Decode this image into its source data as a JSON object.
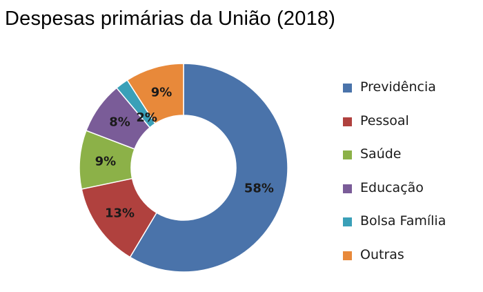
{
  "chart_data": {
    "type": "pie",
    "variant": "donut",
    "title": "Despesas primárias da União (2018)",
    "slices": [
      {
        "label": "Previdência",
        "value": 58,
        "display": "58%",
        "color": "#4a73aa"
      },
      {
        "label": "Pessoal",
        "value": 13,
        "display": "13%",
        "color": "#b0413e"
      },
      {
        "label": "Saúde",
        "value": 9,
        "display": "9%",
        "color": "#8cb148"
      },
      {
        "label": "Educação",
        "value": 8,
        "display": "8%",
        "color": "#7a5c98"
      },
      {
        "label": "Bolsa Família",
        "value": 2,
        "display": "2%",
        "color": "#3aa0b8"
      },
      {
        "label": "Outras",
        "value": 9,
        "display": "9%",
        "color": "#e8893a"
      }
    ],
    "legend_position": "right"
  }
}
